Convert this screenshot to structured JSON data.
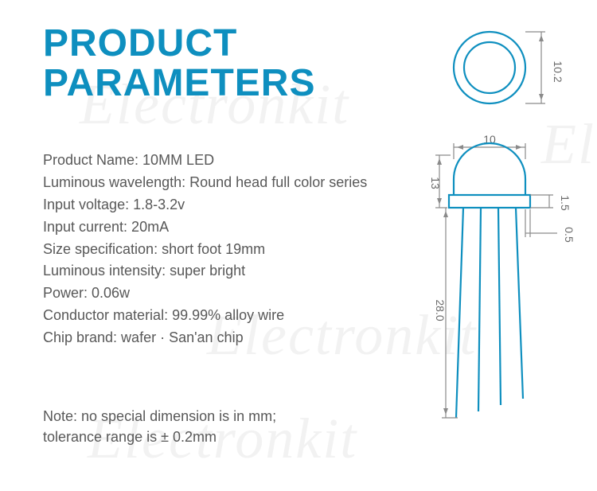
{
  "title_line1": "PRODUCT",
  "title_line2": "PARAMETERS",
  "title_color": "#0e8fbf",
  "text_color": "#585858",
  "watermark_text": "Electronkit",
  "specs": [
    {
      "label": "Product Name",
      "value": "10MM LED"
    },
    {
      "label": "Luminous wavelength",
      "value": "Round head full color series"
    },
    {
      "label": "Input voltage",
      "value": "1.8-3.2v"
    },
    {
      "label": "Input current",
      "value": "20mA"
    },
    {
      "label": "Size specification",
      "value": "short foot 19mm"
    },
    {
      "label": "Luminous intensity",
      "value": "super bright"
    },
    {
      "label": "Power",
      "value": "0.06w"
    },
    {
      "label": "Conductor material",
      "value": "99.99% alloy wire"
    },
    {
      "label": "Chip brand",
      "value": "wafer · San'an chip"
    }
  ],
  "note_line1": "Note: no special dimension is in mm;",
  "note_line2": "tolerance range is ± 0.2mm",
  "diagram": {
    "stroke_color": "#0e8fbf",
    "dim_color": "#8a8a8a",
    "top_view": {
      "outer_diameter_mm": 10.2,
      "outer_diameter_label": "10.2"
    },
    "side_view": {
      "body_width_mm": 10,
      "body_width_label": "10",
      "body_height_mm": 13,
      "body_height_label": "13",
      "flange_height_mm": 1.5,
      "flange_height_label": "1.5",
      "flange_ext_mm": 0.5,
      "flange_ext_label": "0.5",
      "lead_length_mm": 28.0,
      "lead_length_label": "28.0",
      "lead_count": 4
    }
  }
}
